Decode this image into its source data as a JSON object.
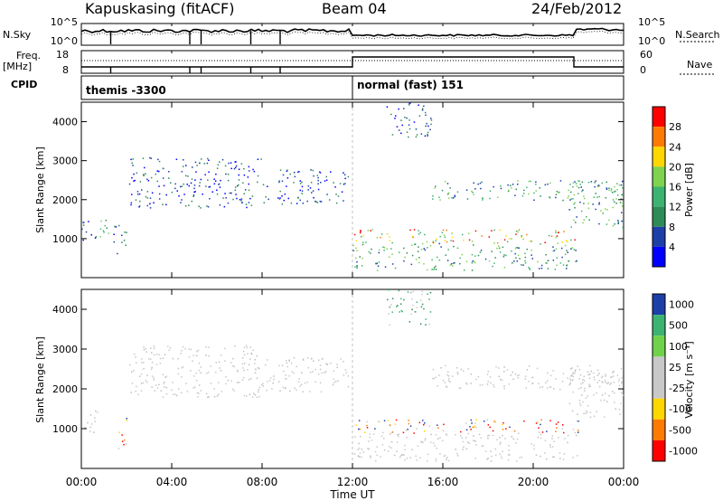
{
  "header": {
    "station": "Kapuskasing (fitACF)",
    "beam": "Beam 04",
    "date": "24/Feb/2012"
  },
  "side_labels": {
    "nsky": "N.Sky",
    "freq_top": "Freq.",
    "freq_unit": "[MHz]",
    "cpid": "CPID",
    "nsearch": "N.Search",
    "nave": "Nave"
  },
  "noise_panel": {
    "left_ticks": [
      "10^5",
      "10^0"
    ],
    "right_ticks": [
      "10^5",
      "10^0"
    ]
  },
  "freq_panel": {
    "left_ticks": [
      "18",
      "8"
    ],
    "right_ticks": [
      "60",
      "0"
    ]
  },
  "cpid_panel": {
    "entries": [
      "themis -3300",
      "normal (fast) 151"
    ]
  },
  "chart_data": [
    {
      "type": "heatmap",
      "panel": "power",
      "ylabel": "Slant Range [km]",
      "ylim": [
        0,
        4500
      ],
      "yticks": [
        "1000",
        "2000",
        "3000",
        "4000"
      ],
      "xlim": [
        0,
        24
      ],
      "colorbar_label": "Power [dB]",
      "colorbar_ticks": [
        "28",
        "24",
        "20",
        "16",
        "12",
        "8",
        "4"
      ],
      "colorbar_colors": [
        "#ff0000",
        "#ff7a00",
        "#ffd700",
        "#7fd34e",
        "#3cb371",
        "#2e8b57",
        "#1c3fa8",
        "#0000ff"
      ],
      "bands": [
        {
          "t": [
            0,
            0.6
          ],
          "r": [
            900,
            1500
          ],
          "level": "low"
        },
        {
          "t": [
            0.6,
            1.4
          ],
          "r": [
            1000,
            1500
          ],
          "level": "mid"
        },
        {
          "t": [
            1.4,
            2.0
          ],
          "r": [
            600,
            1400
          ],
          "level": "low"
        },
        {
          "t": [
            2.1,
            8.0
          ],
          "r": [
            1800,
            3100
          ],
          "level": "low"
        },
        {
          "t": [
            8.0,
            11.8
          ],
          "r": [
            1900,
            2800
          ],
          "level": "low"
        },
        {
          "t": [
            12.0,
            22.0
          ],
          "r": [
            900,
            1250
          ],
          "level": "high"
        },
        {
          "t": [
            12.0,
            22.0
          ],
          "r": [
            200,
            900
          ],
          "level": "mid"
        },
        {
          "t": [
            15.5,
            24.0
          ],
          "r": [
            2000,
            2500
          ],
          "level": "mid"
        },
        {
          "t": [
            21.5,
            24.0
          ],
          "r": [
            1300,
            2500
          ],
          "level": "mid"
        },
        {
          "t": [
            13.5,
            15.5
          ],
          "r": [
            3600,
            4500
          ],
          "level": "low"
        }
      ]
    },
    {
      "type": "heatmap",
      "panel": "velocity",
      "ylabel": "Slant Range [km]",
      "ylim": [
        0,
        4500
      ],
      "yticks": [
        "1000",
        "2000",
        "3000",
        "4000"
      ],
      "xlabel": "Time UT",
      "xlim": [
        0,
        24
      ],
      "xticks": [
        "00:00",
        "04:00",
        "08:00",
        "12:00",
        "16:00",
        "20:00",
        "00:00"
      ],
      "colorbar_label": "Velocity [m s^-1]",
      "colorbar_ticks": [
        "1000",
        "500",
        "100",
        "25",
        "-25",
        "-100",
        "-500",
        "-1000"
      ],
      "colorbar_colors": [
        "#1c3fa8",
        "#3cb371",
        "#6fd24a",
        "#c8c8c8",
        "#c8c8c8",
        "#ffd700",
        "#ff7a00",
        "#ff0000"
      ],
      "bands": [
        {
          "t": [
            0,
            0.7
          ],
          "r": [
            900,
            1500
          ],
          "level": "gray"
        },
        {
          "t": [
            1.6,
            2.0
          ],
          "r": [
            400,
            1300
          ],
          "level": "warm"
        },
        {
          "t": [
            2.1,
            8.0
          ],
          "r": [
            1800,
            3100
          ],
          "level": "gray"
        },
        {
          "t": [
            8.0,
            11.8
          ],
          "r": [
            1900,
            2800
          ],
          "level": "gray"
        },
        {
          "t": [
            12.0,
            22.0
          ],
          "r": [
            900,
            1250
          ],
          "level": "warm"
        },
        {
          "t": [
            12.0,
            22.0
          ],
          "r": [
            200,
            900
          ],
          "level": "gray"
        },
        {
          "t": [
            15.5,
            24.0
          ],
          "r": [
            2000,
            2600
          ],
          "level": "gray"
        },
        {
          "t": [
            21.5,
            24.0
          ],
          "r": [
            1300,
            2500
          ],
          "level": "gray"
        },
        {
          "t": [
            13.5,
            15.5
          ],
          "r": [
            3600,
            4500
          ],
          "level": "green"
        }
      ]
    }
  ]
}
